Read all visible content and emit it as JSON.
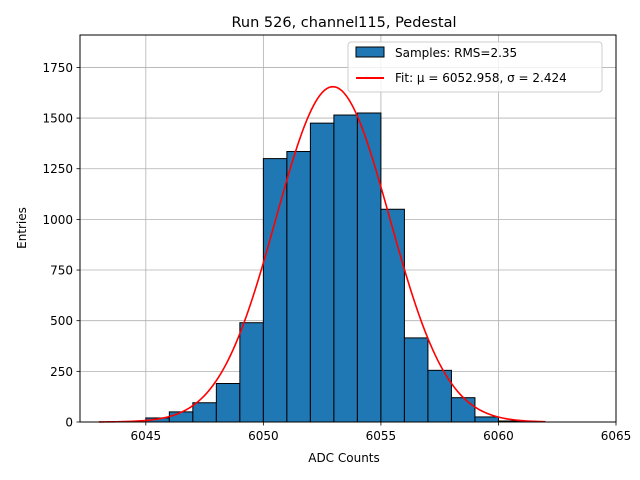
{
  "chart_data": {
    "type": "bar",
    "title": "Run 526, channel115, Pedestal",
    "xlabel": "ADC Counts",
    "ylabel": "Entries",
    "xlim": [
      6042.2,
      6065.0
    ],
    "ylim": [
      0,
      1910
    ],
    "xticks": [
      6045,
      6050,
      6055,
      6060,
      6065
    ],
    "yticks": [
      0,
      250,
      500,
      750,
      1000,
      1250,
      1500,
      1750
    ],
    "grid": true,
    "legend_position": "top-right",
    "bin_width": 1,
    "bins": [
      {
        "left": 6045,
        "value": 20
      },
      {
        "left": 6046,
        "value": 50
      },
      {
        "left": 6047,
        "value": 95
      },
      {
        "left": 6048,
        "value": 190
      },
      {
        "left": 6049,
        "value": 490
      },
      {
        "left": 6050,
        "value": 1300
      },
      {
        "left": 6051,
        "value": 1335
      },
      {
        "left": 6052,
        "value": 1475
      },
      {
        "left": 6053,
        "value": 1515
      },
      {
        "left": 6054,
        "value": 1525
      },
      {
        "left": 6055,
        "value": 1050
      },
      {
        "left": 6056,
        "value": 415
      },
      {
        "left": 6057,
        "value": 255
      },
      {
        "left": 6058,
        "value": 120
      },
      {
        "left": 6059,
        "value": 25
      },
      {
        "left": 6060,
        "value": 5
      }
    ],
    "fit": {
      "mu": 6052.958,
      "sigma": 2.424,
      "amplitude": 1655,
      "x_range": [
        6043,
        6062
      ]
    },
    "series": [
      {
        "name": "Samples: RMS=2.35",
        "color": "#1f77b4",
        "kind": "histogram"
      },
      {
        "name": "Fit: μ = 6052.958, σ = 2.424",
        "color": "#ff0000",
        "kind": "line"
      }
    ]
  }
}
